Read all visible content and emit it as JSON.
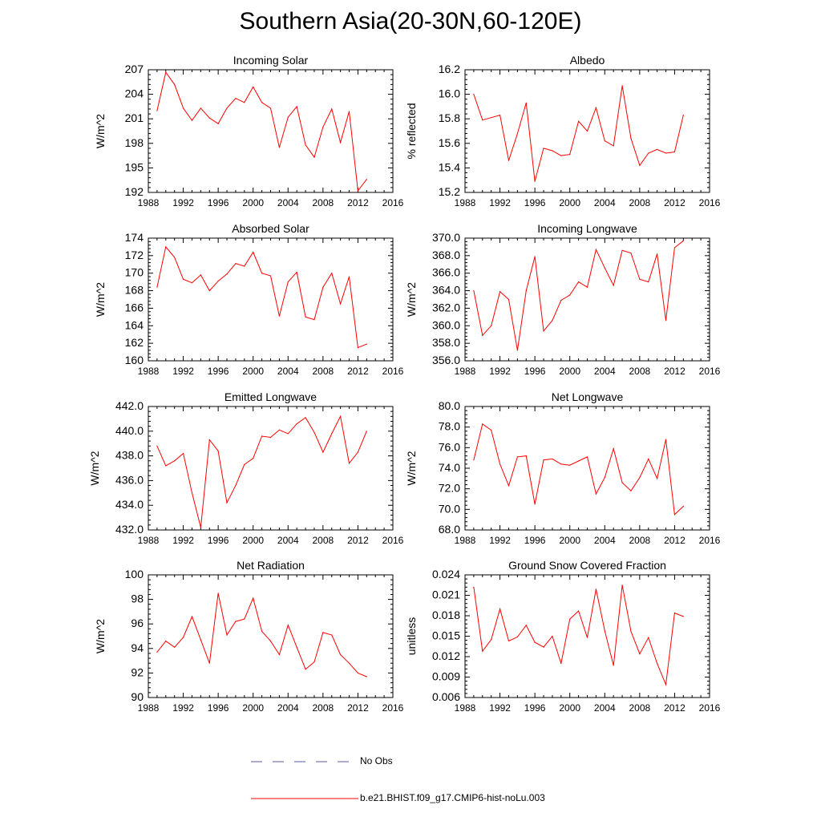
{
  "title": "Southern Asia(20-30N,60-120E)",
  "colors": {
    "model": "#ff0000",
    "obs": "#5a5aa0",
    "axis": "#000000"
  },
  "legend": {
    "obs_label": "No Obs",
    "model_label": "b.e21.BHIST.f09_g17.CMIP6-hist-noLu.003"
  },
  "chart_data": [
    {
      "type": "line",
      "title": "Incoming Solar",
      "xlabel": "",
      "ylabel": "W/m^2",
      "xlim": [
        1988,
        2016
      ],
      "ylim": [
        192,
        207
      ],
      "xticks": [
        "1988",
        "1992",
        "1996",
        "2000",
        "2004",
        "2008",
        "2012",
        "2016"
      ],
      "yticks": [
        "192",
        "195",
        "198",
        "201",
        "204",
        "207"
      ],
      "series": [
        {
          "x": [
            1989,
            1990,
            1991,
            1992,
            1993,
            1994,
            1995,
            1996,
            1997,
            1998,
            1999,
            2000,
            2001,
            2002,
            2003,
            2004,
            2005,
            2006,
            2007,
            2008,
            2009,
            2010,
            2011,
            2012,
            2013
          ],
          "values": [
            202.0,
            206.7,
            205.2,
            202.3,
            200.8,
            202.3,
            201.1,
            200.4,
            202.3,
            203.5,
            203.0,
            204.9,
            203.0,
            202.3,
            197.5,
            201.2,
            202.5,
            197.8,
            196.3,
            200.0,
            202.2,
            198.1,
            201.9,
            192.2,
            193.6
          ]
        }
      ]
    },
    {
      "type": "line",
      "title": "Albedo",
      "xlabel": "",
      "ylabel": "% reflected",
      "xlim": [
        1988,
        2016
      ],
      "ylim": [
        15.2,
        16.2
      ],
      "xticks": [
        "1988",
        "1992",
        "1996",
        "2000",
        "2004",
        "2008",
        "2012",
        "2016"
      ],
      "yticks": [
        "15.2",
        "15.4",
        "15.6",
        "15.8",
        "16.0",
        "16.2"
      ],
      "series": [
        {
          "x": [
            1989,
            1990,
            1991,
            1992,
            1993,
            1994,
            1995,
            1996,
            1997,
            1998,
            1999,
            2000,
            2001,
            2002,
            2003,
            2004,
            2005,
            2006,
            2007,
            2008,
            2009,
            2010,
            2011,
            2012,
            2013
          ],
          "values": [
            16.0,
            15.79,
            15.81,
            15.83,
            15.46,
            15.68,
            15.93,
            15.29,
            15.56,
            15.54,
            15.5,
            15.51,
            15.78,
            15.7,
            15.89,
            15.62,
            15.58,
            16.07,
            15.64,
            15.42,
            15.52,
            15.55,
            15.52,
            15.53,
            15.83
          ]
        }
      ]
    },
    {
      "type": "line",
      "title": "Absorbed Solar",
      "xlabel": "",
      "ylabel": "W/m^2",
      "xlim": [
        1988,
        2016
      ],
      "ylim": [
        160,
        174
      ],
      "xticks": [
        "1988",
        "1992",
        "1996",
        "2000",
        "2004",
        "2008",
        "2012",
        "2016"
      ],
      "yticks": [
        "160",
        "162",
        "164",
        "166",
        "168",
        "170",
        "172",
        "174"
      ],
      "series": [
        {
          "x": [
            1989,
            1990,
            1991,
            1992,
            1993,
            1994,
            1995,
            1996,
            1997,
            1998,
            1999,
            2000,
            2001,
            2002,
            2003,
            2004,
            2005,
            2006,
            2007,
            2008,
            2009,
            2010,
            2011,
            2012,
            2013
          ],
          "values": [
            168.4,
            173.0,
            171.8,
            169.3,
            168.9,
            169.8,
            168.0,
            169.1,
            169.9,
            171.1,
            170.8,
            172.4,
            170.0,
            169.7,
            165.1,
            169.0,
            170.1,
            165.0,
            164.7,
            168.4,
            170.0,
            166.5,
            169.6,
            161.5,
            161.9
          ]
        }
      ]
    },
    {
      "type": "line",
      "title": "Incoming Longwave",
      "xlabel": "",
      "ylabel": "W/m^2",
      "xlim": [
        1988,
        2016
      ],
      "ylim": [
        356,
        370
      ],
      "xticks": [
        "1988",
        "1992",
        "1996",
        "2000",
        "2004",
        "2008",
        "2012",
        "2016"
      ],
      "yticks": [
        "356.0",
        "358.0",
        "360.0",
        "362.0",
        "364.0",
        "366.0",
        "368.0",
        "370.0"
      ],
      "series": [
        {
          "x": [
            1989,
            1990,
            1991,
            1992,
            1993,
            1994,
            1995,
            1996,
            1997,
            1998,
            1999,
            2000,
            2001,
            2002,
            2003,
            2004,
            2005,
            2006,
            2007,
            2008,
            2009,
            2010,
            2011,
            2012,
            2013
          ],
          "values": [
            364.0,
            358.9,
            360.0,
            363.9,
            363.0,
            357.2,
            364.0,
            367.9,
            359.4,
            360.6,
            362.9,
            363.5,
            365.0,
            364.4,
            368.7,
            366.6,
            364.6,
            368.6,
            368.3,
            365.3,
            365.0,
            368.2,
            360.6,
            368.9,
            369.7
          ]
        }
      ]
    },
    {
      "type": "line",
      "title": "Emitted Longwave",
      "xlabel": "",
      "ylabel": "W/m^2",
      "xlim": [
        1988,
        2016
      ],
      "ylim": [
        432,
        442
      ],
      "xticks": [
        "1988",
        "1992",
        "1996",
        "2000",
        "2004",
        "2008",
        "2012",
        "2016"
      ],
      "yticks": [
        "432.0",
        "434.0",
        "436.0",
        "438.0",
        "440.0",
        "442.0"
      ],
      "series": [
        {
          "x": [
            1989,
            1990,
            1991,
            1992,
            1993,
            1994,
            1995,
            1996,
            1997,
            1998,
            1999,
            2000,
            2001,
            2002,
            2003,
            2004,
            2005,
            2006,
            2007,
            2008,
            2009,
            2010,
            2011,
            2012,
            2013
          ],
          "values": [
            438.8,
            437.2,
            437.6,
            438.2,
            435.0,
            432.2,
            439.3,
            438.4,
            434.2,
            435.6,
            437.3,
            437.8,
            439.6,
            439.5,
            440.1,
            439.8,
            440.6,
            441.1,
            439.9,
            438.3,
            439.8,
            441.2,
            437.4,
            438.3,
            440.0
          ]
        }
      ]
    },
    {
      "type": "line",
      "title": "Net Longwave",
      "xlabel": "",
      "ylabel": "W/m^2",
      "xlim": [
        1988,
        2016
      ],
      "ylim": [
        68,
        80
      ],
      "xticks": [
        "1988",
        "1992",
        "1996",
        "2000",
        "2004",
        "2008",
        "2012",
        "2016"
      ],
      "yticks": [
        "68.0",
        "70.0",
        "72.0",
        "74.0",
        "76.0",
        "78.0",
        "80.0"
      ],
      "series": [
        {
          "x": [
            1989,
            1990,
            1991,
            1992,
            1993,
            1994,
            1995,
            1996,
            1997,
            1998,
            1999,
            2000,
            2001,
            2002,
            2003,
            2004,
            2005,
            2006,
            2007,
            2008,
            2009,
            2010,
            2011,
            2012,
            2013
          ],
          "values": [
            74.8,
            78.3,
            77.7,
            74.4,
            72.3,
            75.1,
            75.2,
            70.5,
            74.8,
            74.9,
            74.4,
            74.3,
            74.7,
            75.1,
            71.5,
            73.1,
            75.9,
            72.6,
            71.8,
            73.1,
            74.9,
            73.0,
            76.8,
            69.5,
            70.3
          ]
        }
      ]
    },
    {
      "type": "line",
      "title": "Net Radiation",
      "xlabel": "",
      "ylabel": "W/m^2",
      "xlim": [
        1988,
        2016
      ],
      "ylim": [
        90,
        100
      ],
      "xticks": [
        "1988",
        "1992",
        "1996",
        "2000",
        "2004",
        "2008",
        "2012",
        "2016"
      ],
      "yticks": [
        "90",
        "92",
        "94",
        "96",
        "98",
        "100"
      ],
      "series": [
        {
          "x": [
            1989,
            1990,
            1991,
            1992,
            1993,
            1994,
            1995,
            1996,
            1997,
            1998,
            1999,
            2000,
            2001,
            2002,
            2003,
            2004,
            2005,
            2006,
            2007,
            2008,
            2009,
            2010,
            2011,
            2012,
            2013
          ],
          "values": [
            93.7,
            94.6,
            94.1,
            94.9,
            96.6,
            94.7,
            92.8,
            98.5,
            95.1,
            96.2,
            96.4,
            98.1,
            95.4,
            94.6,
            93.5,
            95.9,
            94.1,
            92.3,
            92.9,
            95.3,
            95.1,
            93.5,
            92.8,
            92.0,
            91.7
          ]
        }
      ]
    },
    {
      "type": "line",
      "title": "Ground Snow Covered Fraction",
      "xlabel": "",
      "ylabel": "unitless",
      "xlim": [
        1988,
        2016
      ],
      "ylim": [
        0.006,
        0.024
      ],
      "xticks": [
        "1988",
        "1992",
        "1996",
        "2000",
        "2004",
        "2008",
        "2012",
        "2016"
      ],
      "yticks": [
        "0.006",
        "0.009",
        "0.012",
        "0.015",
        "0.018",
        "0.021",
        "0.024"
      ],
      "series": [
        {
          "x": [
            1989,
            1990,
            1991,
            1992,
            1993,
            1994,
            1995,
            1996,
            1997,
            1998,
            1999,
            2000,
            2001,
            2002,
            2003,
            2004,
            2005,
            2006,
            2007,
            2008,
            2009,
            2010,
            2011,
            2012,
            2013
          ],
          "values": [
            0.0222,
            0.0128,
            0.0145,
            0.019,
            0.0143,
            0.0149,
            0.0166,
            0.0141,
            0.0134,
            0.015,
            0.011,
            0.0175,
            0.0187,
            0.0148,
            0.0219,
            0.0158,
            0.0107,
            0.0225,
            0.0157,
            0.0124,
            0.0148,
            0.011,
            0.0079,
            0.0184,
            0.0179
          ]
        }
      ]
    }
  ]
}
